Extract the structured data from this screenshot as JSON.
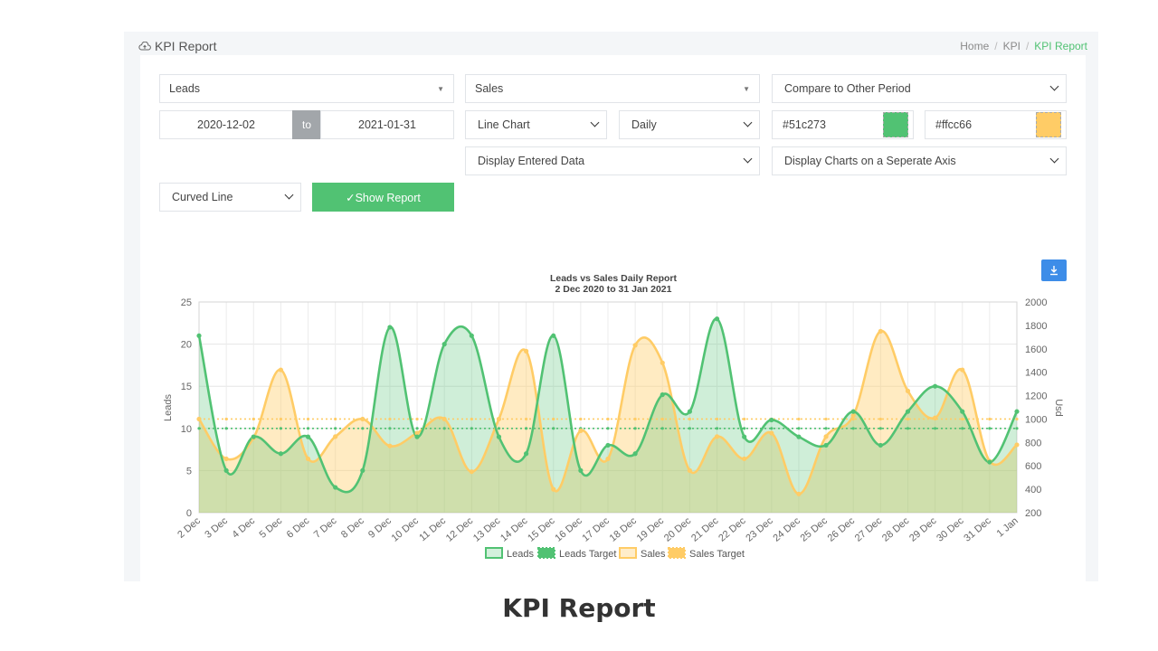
{
  "header": {
    "title": "KPI Report",
    "breadcrumb": [
      "Home",
      "KPI",
      "KPI Report"
    ]
  },
  "form": {
    "metric1": "Leads",
    "metric2": "Sales",
    "compare": "Compare to Other Period",
    "date_from": "2020-12-02",
    "date_to_label": "to",
    "date_to": "2021-01-31",
    "chart_type": "Line Chart",
    "interval": "Daily",
    "color1": "#51c273",
    "color2": "#ffcc66",
    "display_data": "Display Entered Data",
    "axis_mode": "Display Charts on a Seperate Axis",
    "line_style": "Curved Line",
    "show_report": "✓Show Report"
  },
  "chart_data": {
    "type": "line",
    "title": "Leads vs Sales Daily Report",
    "subtitle": "2 Dec 2020 to 31 Jan 2021",
    "categories": [
      "2 Dec",
      "3 Dec",
      "4 Dec",
      "5 Dec",
      "6 Dec",
      "7 Dec",
      "8 Dec",
      "9 Dec",
      "10 Dec",
      "11 Dec",
      "12 Dec",
      "13 Dec",
      "14 Dec",
      "15 Dec",
      "16 Dec",
      "17 Dec",
      "18 Dec",
      "19 Dec",
      "20 Dec",
      "21 Dec",
      "22 Dec",
      "23 Dec",
      "24 Dec",
      "25 Dec",
      "26 Dec",
      "27 Dec",
      "28 Dec",
      "29 Dec",
      "30 Dec",
      "31 Dec",
      "1 Jan"
    ],
    "ylabel_left": "Leads",
    "ylabel_right": "Usd",
    "ylim_left": [
      0,
      25
    ],
    "ylim_right": [
      200,
      2000
    ],
    "yticks_left": [
      0,
      5,
      10,
      15,
      20,
      25
    ],
    "yticks_right": [
      200,
      400,
      600,
      800,
      1000,
      1200,
      1400,
      1600,
      1800,
      2000
    ],
    "grid": true,
    "legend_position": "bottom",
    "series": [
      {
        "name": "Leads",
        "axis": "left",
        "color": "#51c273",
        "values": [
          21,
          5,
          9,
          7,
          9,
          3,
          5,
          22,
          9,
          20,
          21,
          9,
          7,
          21,
          5,
          8,
          7,
          14,
          12,
          23,
          9,
          11,
          9,
          8,
          12,
          8,
          12,
          15,
          12,
          6,
          12
        ]
      },
      {
        "name": "Leads Target",
        "axis": "left",
        "color": "#51c273",
        "values": [
          10,
          10,
          10,
          10,
          10,
          10,
          10,
          10,
          10,
          10,
          10,
          10,
          10,
          10,
          10,
          10,
          10,
          10,
          10,
          10,
          10,
          10,
          10,
          10,
          10,
          10,
          10,
          10,
          10,
          10,
          10
        ]
      },
      {
        "name": "Sales",
        "axis": "right",
        "color": "#ffcc66",
        "values": [
          1000,
          660,
          840,
          1420,
          660,
          850,
          1000,
          770,
          880,
          1000,
          550,
          1000,
          1580,
          400,
          900,
          660,
          1630,
          1480,
          560,
          850,
          660,
          880,
          360,
          850,
          1030,
          1750,
          1240,
          1010,
          1420,
          640,
          780
        ]
      },
      {
        "name": "Sales Target",
        "axis": "right",
        "color": "#ffcc66",
        "values": [
          1000,
          1000,
          1000,
          1000,
          1000,
          1000,
          1000,
          1000,
          1000,
          1000,
          1000,
          1000,
          1000,
          1000,
          1000,
          1000,
          1000,
          1000,
          1000,
          1000,
          1000,
          1000,
          1000,
          1000,
          1000,
          1000,
          1000,
          1000,
          1000,
          1000,
          1000
        ]
      }
    ]
  },
  "caption": "KPI Report"
}
